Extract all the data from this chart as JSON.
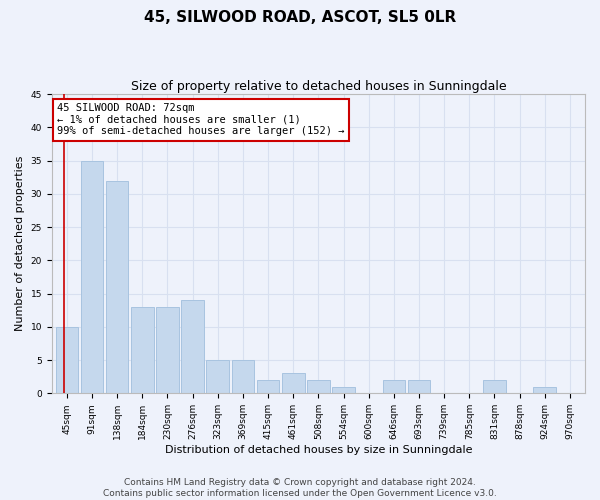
{
  "title": "45, SILWOOD ROAD, ASCOT, SL5 0LR",
  "subtitle": "Size of property relative to detached houses in Sunningdale",
  "xlabel": "Distribution of detached houses by size in Sunningdale",
  "ylabel": "Number of detached properties",
  "categories": [
    "45sqm",
    "91sqm",
    "138sqm",
    "184sqm",
    "230sqm",
    "276sqm",
    "323sqm",
    "369sqm",
    "415sqm",
    "461sqm",
    "508sqm",
    "554sqm",
    "600sqm",
    "646sqm",
    "693sqm",
    "739sqm",
    "785sqm",
    "831sqm",
    "878sqm",
    "924sqm",
    "970sqm"
  ],
  "values": [
    10,
    35,
    32,
    13,
    13,
    14,
    5,
    5,
    2,
    3,
    2,
    1,
    0,
    2,
    2,
    0,
    0,
    2,
    0,
    1,
    0
  ],
  "bar_color": "#c5d8ed",
  "bar_edge_color": "#a8c4e0",
  "grid_color": "#d8e0f0",
  "annotation_box_text": "45 SILWOOD ROAD: 72sqm\n← 1% of detached houses are smaller (1)\n99% of semi-detached houses are larger (152) →",
  "annotation_box_color": "#ffffff",
  "annotation_box_edge_color": "#cc0000",
  "highlight_line_color": "#cc0000",
  "ylim": [
    0,
    45
  ],
  "yticks": [
    0,
    5,
    10,
    15,
    20,
    25,
    30,
    35,
    40,
    45
  ],
  "footer_line1": "Contains HM Land Registry data © Crown copyright and database right 2024.",
  "footer_line2": "Contains public sector information licensed under the Open Government Licence v3.0.",
  "background_color": "#eef2fb",
  "plot_bg_color": "#eef2fb",
  "title_fontsize": 11,
  "subtitle_fontsize": 9,
  "axis_label_fontsize": 8,
  "tick_fontsize": 6.5,
  "footer_fontsize": 6.5,
  "annotation_fontsize": 7.5
}
